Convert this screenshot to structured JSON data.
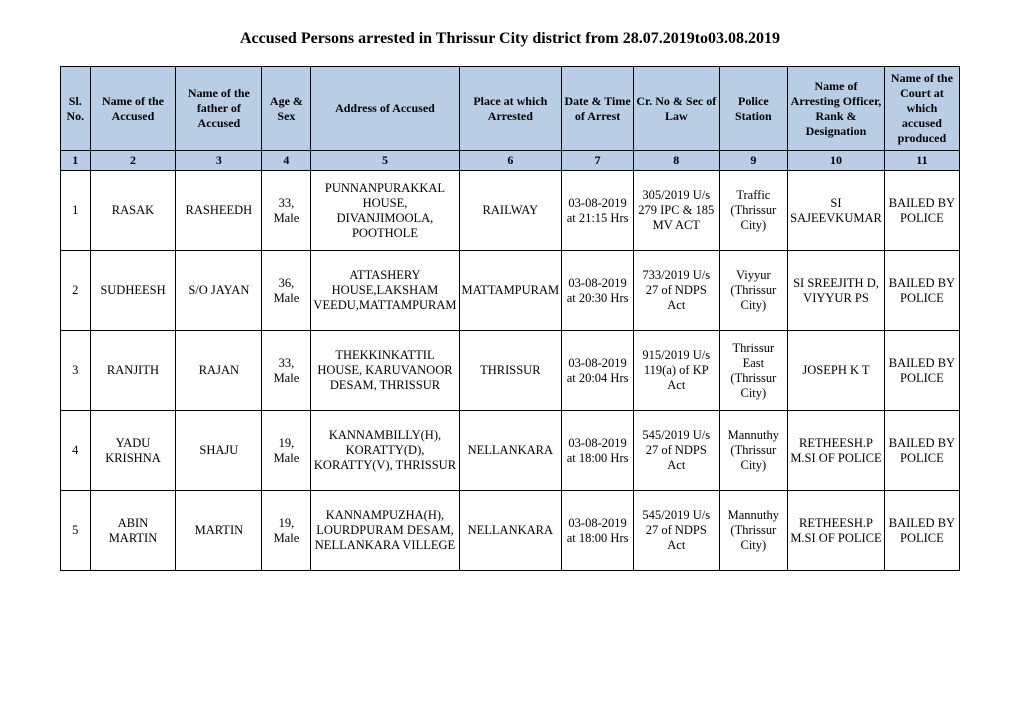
{
  "title": "Accused Persons arrested in   Thrissur City   district from  28.07.2019to03.08.2019",
  "table": {
    "columns": [
      "Sl. No.",
      "Name of the Accused",
      "Name of the father of Accused",
      "Age & Sex",
      "Address of Accused",
      "Place at which Arrested",
      "Date & Time of Arrest",
      "Cr. No & Sec of Law",
      "Police Station",
      "Name of Arresting Officer, Rank & Designation",
      "Name of the Court at which accused produced"
    ],
    "numrow": [
      "1",
      "2",
      "3",
      "4",
      "5",
      "6",
      "7",
      "8",
      "9",
      "10",
      "11"
    ],
    "rows": [
      {
        "sl": "1",
        "name": "RASAK",
        "father": "RASHEEDH",
        "age_sex": "33, Male",
        "address": "PUNNANPURAKKAL HOUSE, DIVANJIMOOLA, POOTHOLE",
        "place": "RAILWAY",
        "datetime": "03-08-2019 at 21:15 Hrs",
        "crno": "305/2019 U/s 279 IPC & 185 MV ACT",
        "station": "Traffic (Thrissur City)",
        "officer": "SI SAJEEVKUMAR",
        "court": "BAILED BY POLICE"
      },
      {
        "sl": "2",
        "name": "SUDHEESH",
        "father": "S/O JAYAN",
        "age_sex": "36, Male",
        "address": "ATTASHERY HOUSE,LAKSHAM VEEDU,MATTAMPURAM",
        "place": "MATTAMPURAM",
        "datetime": "03-08-2019 at 20:30 Hrs",
        "crno": "733/2019 U/s 27 of NDPS Act",
        "station": "Viyyur (Thrissur City)",
        "officer": "SI SREEJITH D, VIYYUR PS",
        "court": "BAILED BY POLICE"
      },
      {
        "sl": "3",
        "name": "RANJITH",
        "father": "RAJAN",
        "age_sex": "33, Male",
        "address": "THEKKINKATTIL HOUSE, KARUVANOOR DESAM, THRISSUR",
        "place": "THRISSUR",
        "datetime": "03-08-2019 at 20:04 Hrs",
        "crno": "915/2019 U/s 119(a) of KP Act",
        "station": "Thrissur East (Thrissur City)",
        "officer": "JOSEPH K T",
        "court": "BAILED BY POLICE"
      },
      {
        "sl": "4",
        "name": "YADU KRISHNA",
        "father": "SHAJU",
        "age_sex": "19, Male",
        "address": "KANNAMBILLY(H), KORATTY(D), KORATTY(V), THRISSUR",
        "place": "NELLANKARA",
        "datetime": "03-08-2019 at 18:00 Hrs",
        "crno": "545/2019 U/s 27 of NDPS Act",
        "station": "Mannuthy (Thrissur City)",
        "officer": "RETHEESH.P M.SI OF POLICE",
        "court": "BAILED BY POLICE"
      },
      {
        "sl": "5",
        "name": "ABIN MARTIN",
        "father": "MARTIN",
        "age_sex": "19, Male",
        "address": "KANNAMPUZHA(H), LOURDPURAM DESAM, NELLANKARA VILLEGE",
        "place": "NELLANKARA",
        "datetime": "03-08-2019 at 18:00 Hrs",
        "crno": "545/2019 U/s 27 of NDPS Act",
        "station": "Mannuthy (Thrissur City)",
        "officer": "RETHEESH.P M.SI OF POLICE",
        "court": "BAILED BY POLICE"
      }
    ],
    "header_bg": "#b9cde5",
    "border_color": "#000000",
    "font_family": "Georgia, Times New Roman, serif",
    "title_fontsize": 16,
    "cell_fontsize": 12.5
  }
}
